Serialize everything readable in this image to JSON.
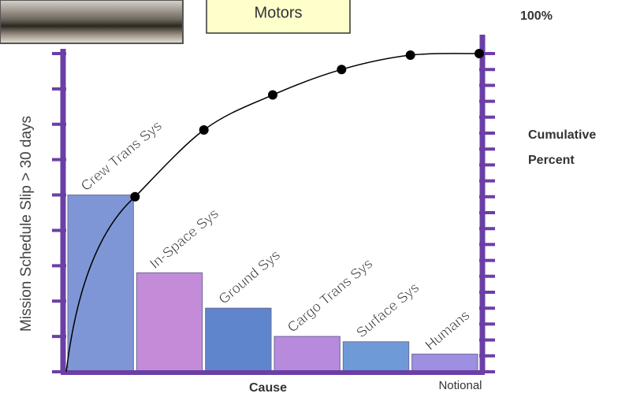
{
  "chart_data": {
    "type": "pareto",
    "banner": "Motors",
    "y2_top_label": "100%",
    "ylabel": "Mission Schedule Slip > 30 days",
    "xlabel": "Cause",
    "y2label": [
      "Cumulative",
      "Percent"
    ],
    "annotation": "Notional",
    "categories": [
      "Crew Trans Sys",
      "In-Space Sys",
      "Ground Sys",
      "Cargo Trans Sys",
      "Surface Sys",
      "Humans"
    ],
    "series": [
      {
        "values": [
          5,
          2.8,
          1.8,
          1,
          0.85,
          0.5
        ],
        "colors": [
          "#7f96d6",
          "#c48bd8",
          "#5f86cc",
          "#b88ade",
          "#6f9ad8",
          "#9e8fe0"
        ]
      },
      {
        "values": [
          55,
          76,
          87,
          95,
          99.5,
          100
        ],
        "axis": "y2",
        "color": "#000000"
      }
    ],
    "ylim": [
      0,
      9
    ],
    "yticks": [
      0,
      1,
      2,
      3,
      4,
      5,
      6,
      7,
      8,
      9
    ],
    "y2lim": [
      0,
      100
    ],
    "y2ticks": [
      0,
      5,
      10,
      15,
      20,
      25,
      30,
      35,
      40,
      45,
      50,
      55,
      60,
      65,
      70,
      75,
      80,
      85,
      90,
      95,
      100
    ],
    "axis_color": "#6a3fa6"
  }
}
